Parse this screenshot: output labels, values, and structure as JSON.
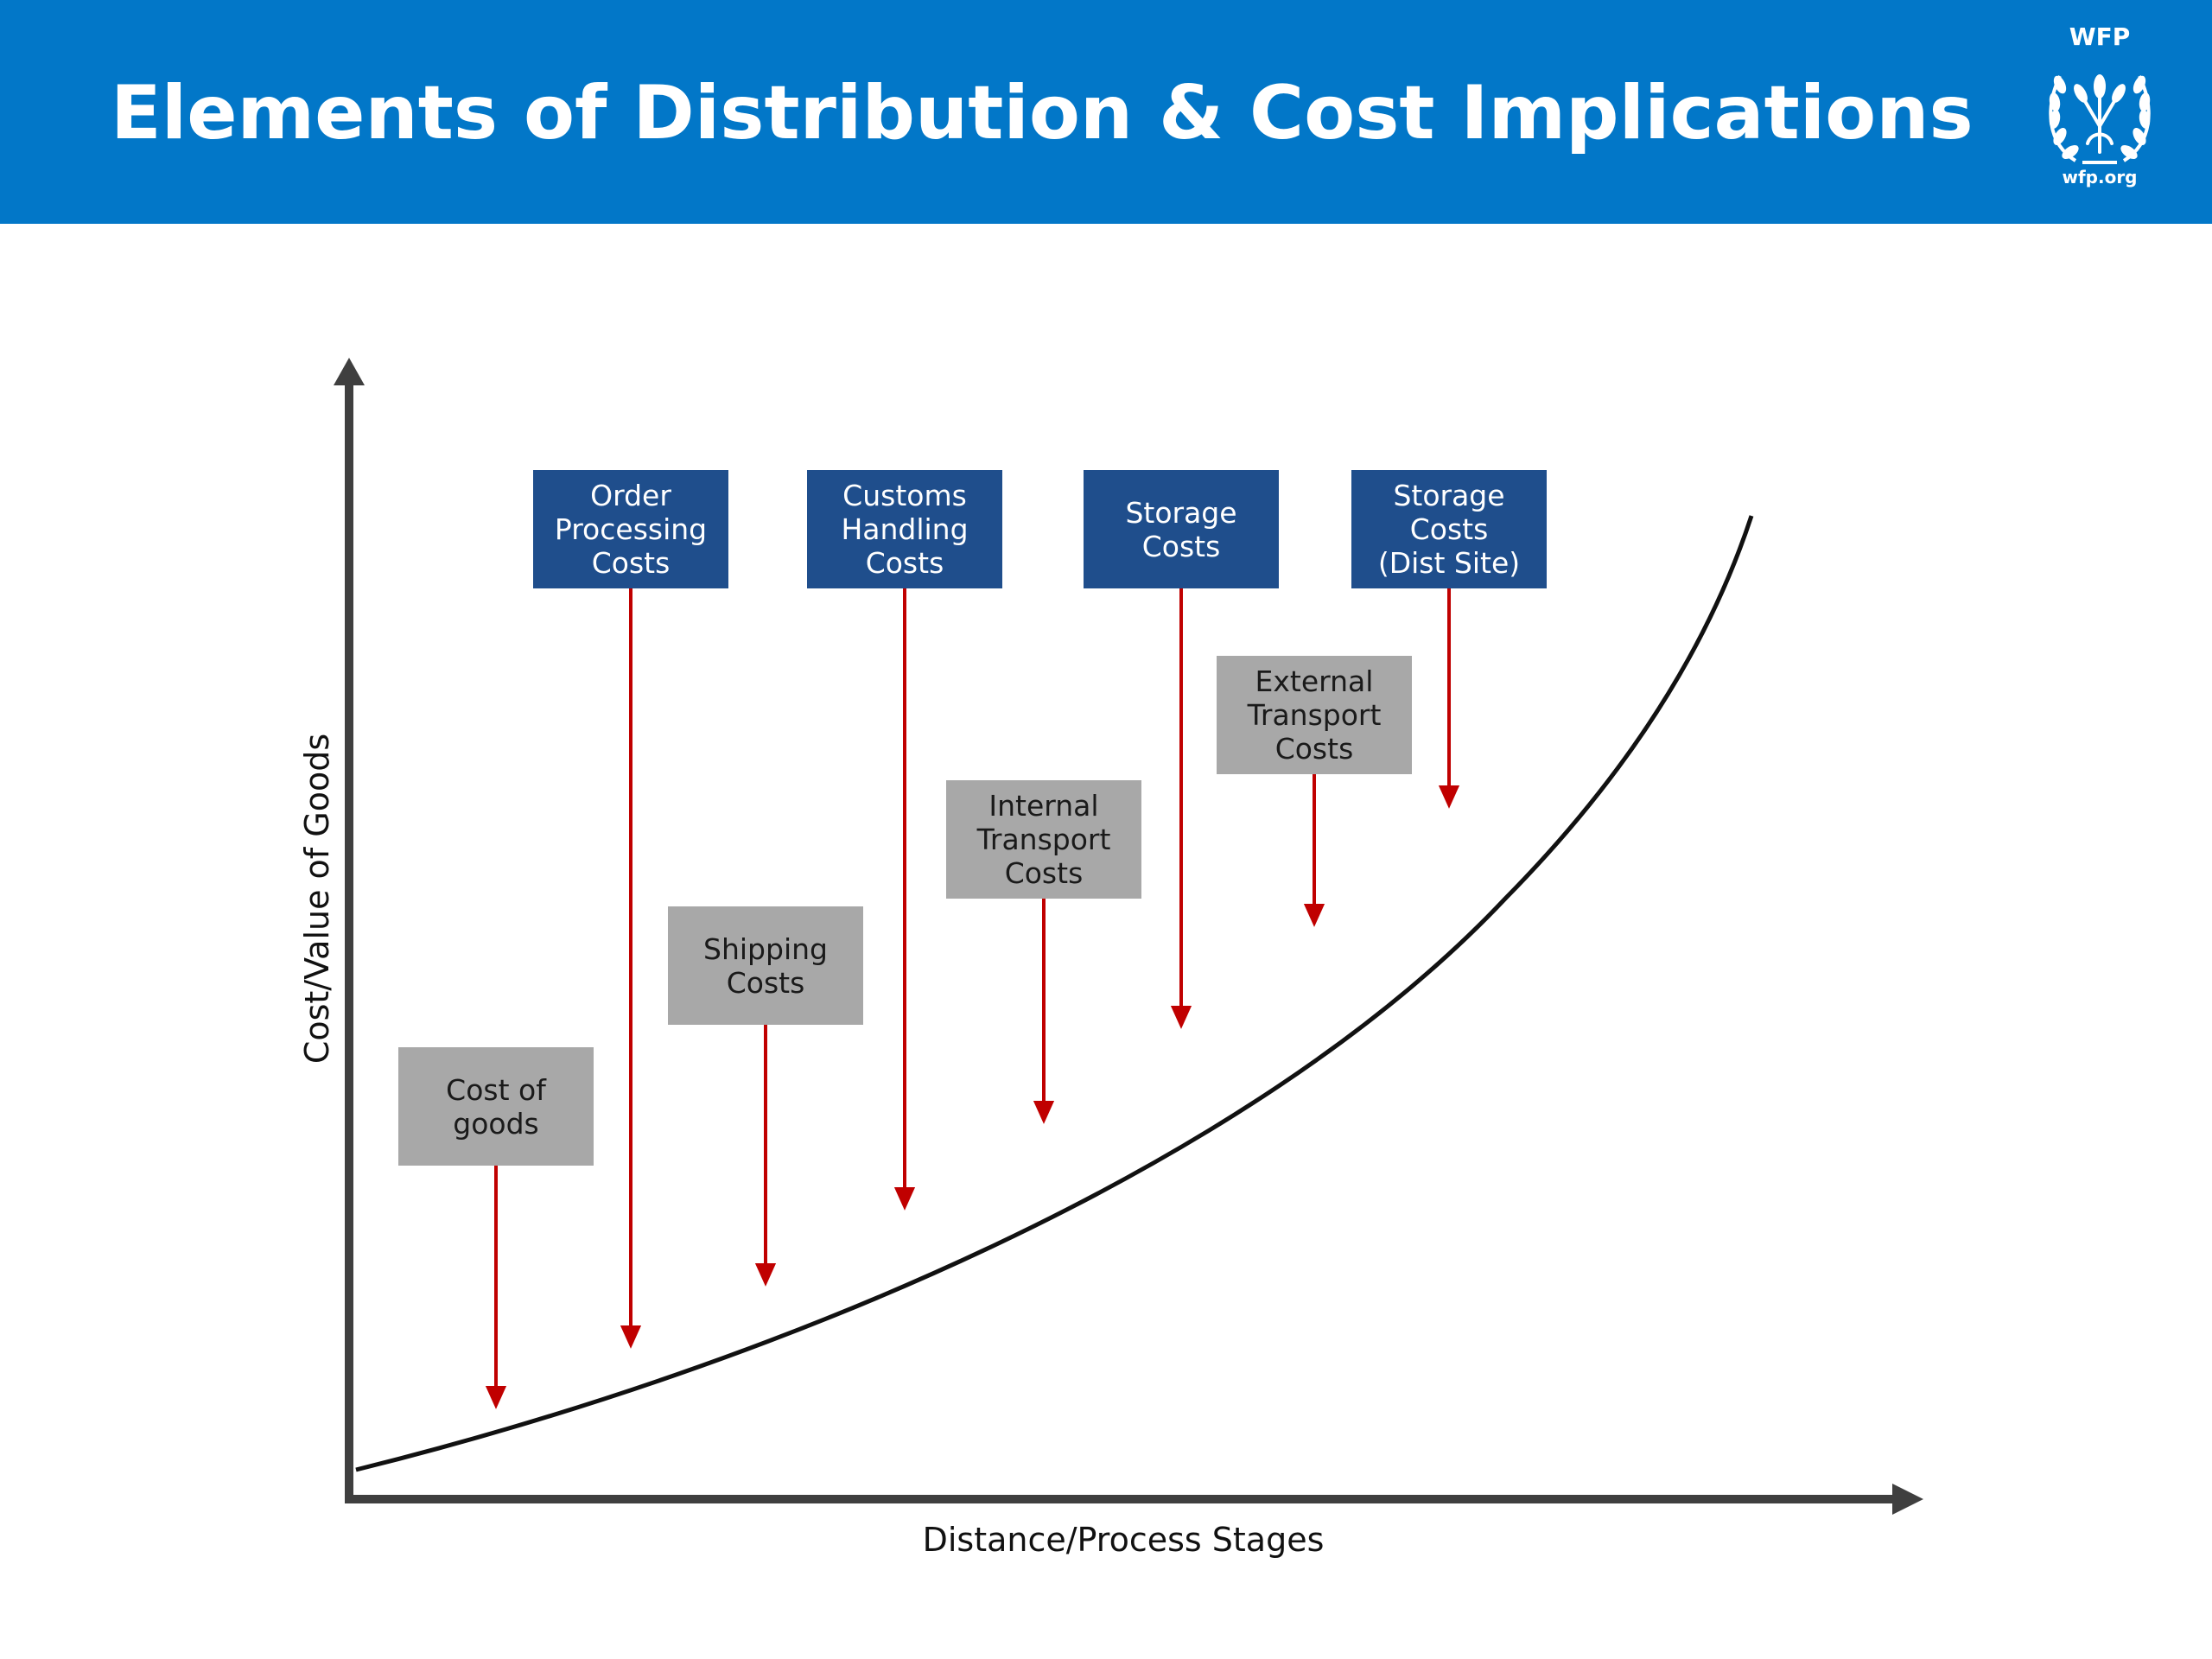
{
  "header": {
    "title": "Elements of Distribution & Cost Implications",
    "background_color": "#0277c8",
    "logo": {
      "top_text": "WFP",
      "bottom_text": "wfp.org",
      "icon": "wfp-emblem-icon"
    }
  },
  "diagram": {
    "x_axis_label": "Distance/Process Stages",
    "y_axis_label": "Cost/Value of Goods",
    "curve_color": "#111111",
    "arrow_color": "#c00000",
    "colors": {
      "cost_box_blue": "#1f4e8c",
      "cost_box_gray": "#a8a8a8"
    },
    "boxes": [
      {
        "label": "Cost of\ngoods",
        "color": "gray"
      },
      {
        "label": "Order\nProcessing\nCosts",
        "color": "blue"
      },
      {
        "label": "Shipping\nCosts",
        "color": "gray"
      },
      {
        "label": "Customs\nHandling\nCosts",
        "color": "blue"
      },
      {
        "label": "Internal\nTransport\nCosts",
        "color": "gray"
      },
      {
        "label": "Storage\nCosts",
        "color": "blue"
      },
      {
        "label": "External\nTransport\nCosts",
        "color": "gray"
      },
      {
        "label": "Storage\nCosts\n(Dist Site)",
        "color": "blue"
      }
    ]
  }
}
